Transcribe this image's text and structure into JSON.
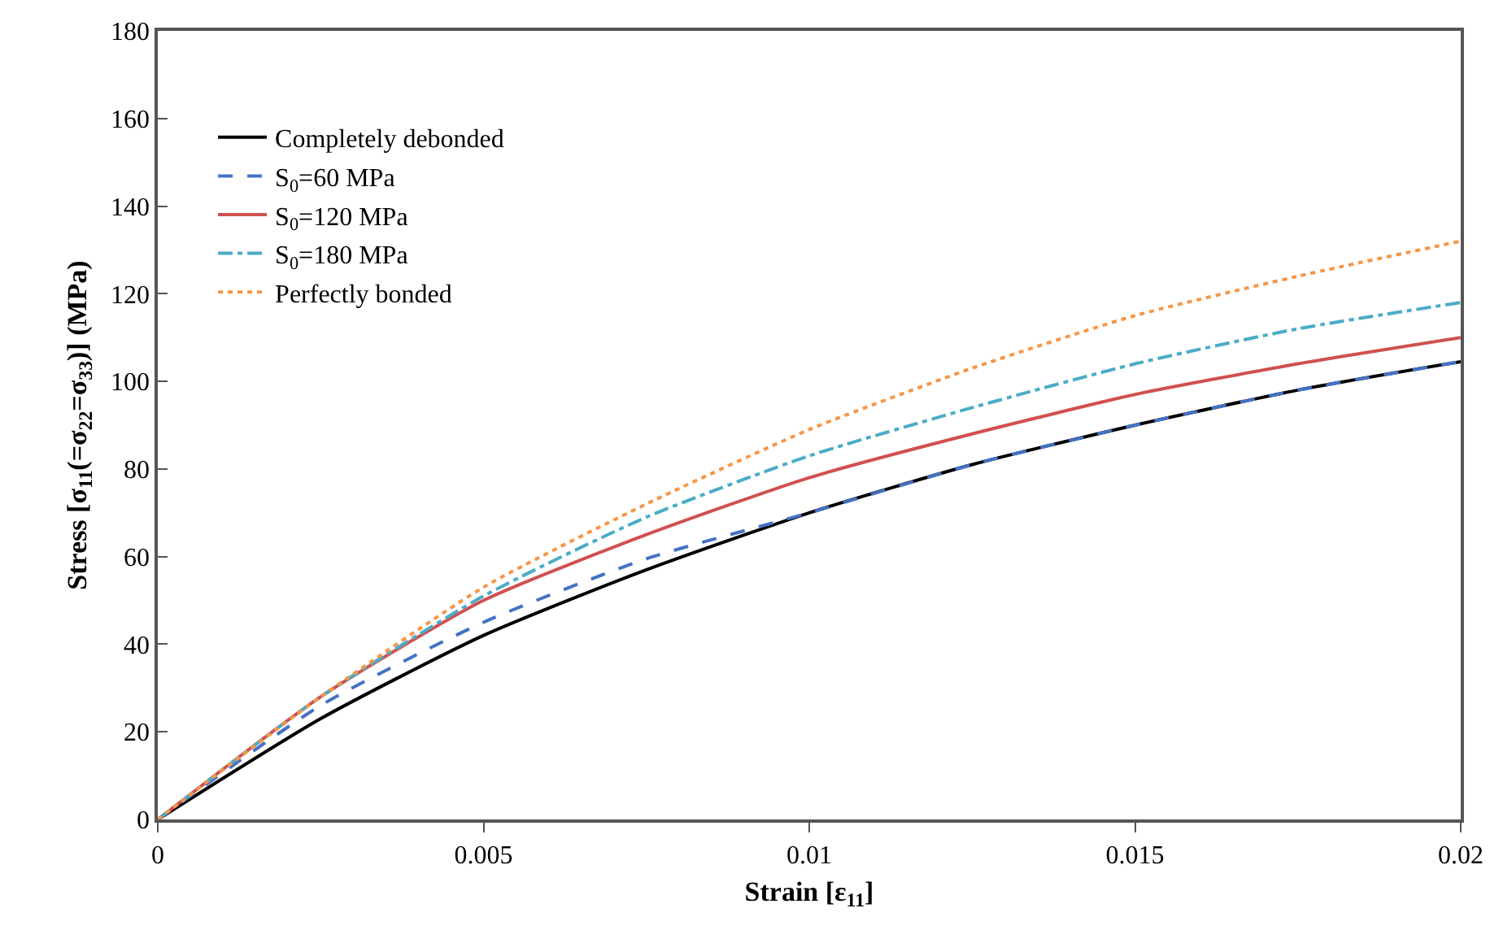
{
  "chart_data": {
    "type": "line",
    "xlabel": "Strain [ε$_{11}$]",
    "ylabel": "Stress [σ$_{11}$(=σ$_{22}$=σ$_{33}$)] (MPa)",
    "x": [
      0,
      0.0025,
      0.005,
      0.0075,
      0.01,
      0.0125,
      0.015,
      0.0175,
      0.02
    ],
    "series": [
      {
        "name": "Completely debonded",
        "color": "#000000",
        "line_style": "solid",
        "values": [
          0,
          23,
          42,
          57,
          70,
          81,
          90,
          98,
          104.5
        ]
      },
      {
        "name": "S$_{0}$=60 MPa",
        "color": "#4472c4",
        "line_style": "dashed",
        "values": [
          0,
          26,
          45,
          59.5,
          70,
          81,
          90,
          98,
          104.5
        ]
      },
      {
        "name": "S$_{0}$=120 MPa",
        "color": "#d0504f",
        "line_style": "solid",
        "values": [
          0,
          28,
          50,
          65,
          78,
          88,
          97,
          104,
          110
        ]
      },
      {
        "name": "S$_{0}$=180 MPa",
        "color": "#4bacc6",
        "line_style": "dashdot",
        "values": [
          0,
          28,
          51,
          69,
          83,
          94,
          104,
          112,
          118
        ]
      },
      {
        "name": "Perfectly bonded",
        "color": "#f79646",
        "line_style": "dotted",
        "values": [
          0,
          28,
          53,
          72,
          89,
          103,
          115,
          124,
          132
        ]
      }
    ],
    "xlim": [
      0,
      0.02
    ],
    "xticks": [
      0,
      0.005,
      0.01,
      0.015,
      0.02
    ],
    "ylim": [
      0,
      180
    ],
    "yticks": [
      0,
      20,
      40,
      60,
      80,
      100,
      120,
      140,
      160,
      180
    ],
    "grid": false,
    "legend": "top left",
    "marker": "none"
  }
}
